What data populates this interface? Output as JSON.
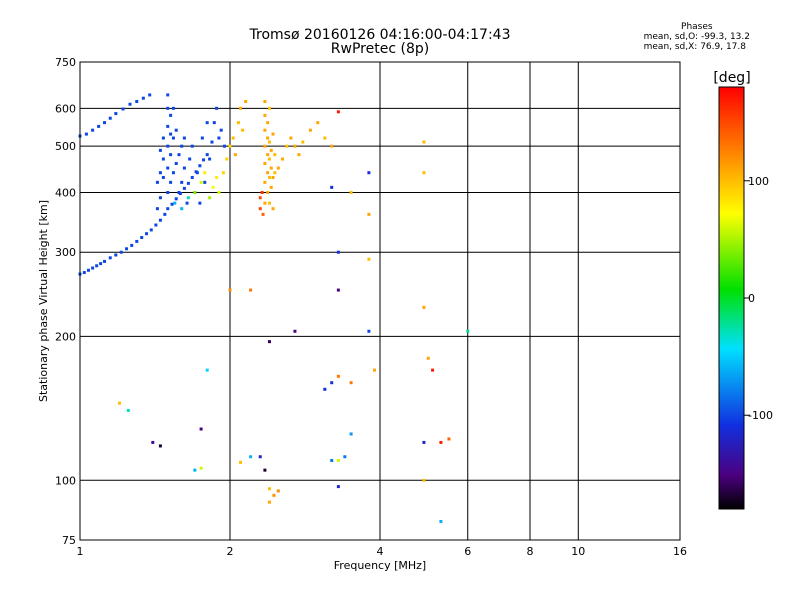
{
  "header": {
    "title": "Tromsø 20160126 04:16:00-04:17:43",
    "subtitle": "RwPretec (8p)"
  },
  "stats": {
    "heading": "Phases",
    "line_o": "mean, sd,O: -99.3, 13.2",
    "line_x": "mean, sd,X:  76.9, 17.8"
  },
  "colorbar": {
    "label": "[deg]",
    "ticks": [
      "100",
      "0",
      "-100"
    ],
    "tick_values": [
      100,
      0,
      -100
    ],
    "range": [
      -180,
      180
    ]
  },
  "chart_data": {
    "type": "scatter",
    "xlabel": "Frequency [MHz]",
    "ylabel": "Stationary phase Virtual Height [km]",
    "xscale": "log",
    "yscale": "log",
    "xlim": [
      1,
      16
    ],
    "ylim": [
      75,
      750
    ],
    "xticks": [
      1,
      2,
      4,
      6,
      8,
      10,
      16
    ],
    "xtick_labels": [
      "1",
      "2",
      "4",
      "6",
      "8",
      "10",
      "16"
    ],
    "yticks": [
      75,
      100,
      200,
      300,
      400,
      500,
      600,
      750
    ],
    "ytick_labels": [
      "75",
      "100",
      "200",
      "300",
      "400",
      "500",
      "600",
      "750"
    ],
    "grid": true,
    "series": [
      {
        "points": [
          [
            1.0,
            270,
            -100
          ],
          [
            1.02,
            272,
            -100
          ],
          [
            1.04,
            275,
            -100
          ],
          [
            1.06,
            278,
            -100
          ],
          [
            1.08,
            281,
            -100
          ],
          [
            1.1,
            284,
            -100
          ],
          [
            1.12,
            287,
            -100
          ],
          [
            1.15,
            292,
            -100
          ],
          [
            1.18,
            296,
            -100
          ],
          [
            1.21,
            300,
            -100
          ],
          [
            1.24,
            305,
            -100
          ],
          [
            1.27,
            310,
            -100
          ],
          [
            1.3,
            316,
            -100
          ],
          [
            1.33,
            322,
            -100
          ],
          [
            1.36,
            328,
            -100
          ],
          [
            1.39,
            334,
            -100
          ],
          [
            1.42,
            342,
            -100
          ],
          [
            1.45,
            350,
            -100
          ],
          [
            1.48,
            360,
            -100
          ],
          [
            1.5,
            370,
            -100
          ],
          [
            1.53,
            378,
            -100
          ],
          [
            1.56,
            388,
            -100
          ],
          [
            1.59,
            398,
            -100
          ],
          [
            1.62,
            408,
            -100
          ],
          [
            1.65,
            418,
            -100
          ],
          [
            1.68,
            430,
            -100
          ],
          [
            1.71,
            442,
            -100
          ],
          [
            1.74,
            455,
            -100
          ],
          [
            1.77,
            468,
            -100
          ],
          [
            1.8,
            480,
            -100
          ],
          [
            1.0,
            525,
            -100
          ],
          [
            1.03,
            530,
            -100
          ],
          [
            1.06,
            540,
            -100
          ],
          [
            1.09,
            550,
            -100
          ],
          [
            1.12,
            560,
            -100
          ],
          [
            1.15,
            572,
            -100
          ],
          [
            1.18,
            585,
            -100
          ],
          [
            1.22,
            598,
            -100
          ],
          [
            1.26,
            612,
            -100
          ],
          [
            1.3,
            620,
            -100
          ],
          [
            1.34,
            630,
            -100
          ],
          [
            1.38,
            640,
            -100
          ],
          [
            1.5,
            400,
            -100
          ],
          [
            1.5,
            450,
            -100
          ],
          [
            1.5,
            500,
            -100
          ],
          [
            1.5,
            550,
            -100
          ],
          [
            1.5,
            600,
            -100
          ],
          [
            1.5,
            640,
            -100
          ],
          [
            1.52,
            420,
            -100
          ],
          [
            1.52,
            480,
            -100
          ],
          [
            1.52,
            530,
            -100
          ],
          [
            1.52,
            580,
            -100
          ],
          [
            1.54,
            440,
            -100
          ],
          [
            1.54,
            520,
            -100
          ],
          [
            1.54,
            600,
            -100
          ],
          [
            1.47,
            430,
            -100
          ],
          [
            1.47,
            470,
            -100
          ],
          [
            1.47,
            520,
            -100
          ],
          [
            1.45,
            390,
            -100
          ],
          [
            1.45,
            440,
            -100
          ],
          [
            1.45,
            490,
            -100
          ],
          [
            1.43,
            370,
            -100
          ],
          [
            1.43,
            420,
            -100
          ],
          [
            1.56,
            460,
            -100
          ],
          [
            1.56,
            540,
            -100
          ],
          [
            1.58,
            400,
            -100
          ],
          [
            1.58,
            480,
            -100
          ],
          [
            1.6,
            420,
            -100
          ],
          [
            1.6,
            500,
            -100
          ],
          [
            1.62,
            450,
            -100
          ],
          [
            1.62,
            520,
            -100
          ],
          [
            1.64,
            380,
            -100
          ],
          [
            1.66,
            470,
            -100
          ],
          [
            1.68,
            500,
            -100
          ],
          [
            1.7,
            400,
            -100
          ],
          [
            1.72,
            440,
            -100
          ],
          [
            1.74,
            380,
            -100
          ],
          [
            1.76,
            520,
            -100
          ],
          [
            1.78,
            420,
            -100
          ],
          [
            1.8,
            560,
            -100
          ],
          [
            1.82,
            470,
            -100
          ],
          [
            1.84,
            510,
            -100
          ],
          [
            1.86,
            560,
            -100
          ],
          [
            1.88,
            600,
            -100
          ],
          [
            1.9,
            520,
            -100
          ],
          [
            1.92,
            540,
            -100
          ],
          [
            1.95,
            500,
            -100
          ],
          [
            1.55,
            380,
            -60
          ],
          [
            1.6,
            370,
            -60
          ],
          [
            1.65,
            390,
            -30
          ],
          [
            1.7,
            400,
            40
          ],
          [
            1.75,
            420,
            60
          ],
          [
            1.78,
            440,
            80
          ],
          [
            1.82,
            390,
            50
          ],
          [
            1.85,
            410,
            70
          ],
          [
            1.88,
            430,
            80
          ],
          [
            1.9,
            400,
            60
          ],
          [
            1.94,
            440,
            90
          ],
          [
            1.97,
            470,
            90
          ],
          [
            2.0,
            500,
            90
          ],
          [
            2.03,
            520,
            100
          ],
          [
            2.05,
            480,
            110
          ],
          [
            2.08,
            560,
            100
          ],
          [
            2.1,
            600,
            110
          ],
          [
            2.12,
            540,
            100
          ],
          [
            2.15,
            620,
            110
          ],
          [
            2.35,
            380,
            110
          ],
          [
            2.35,
            420,
            110
          ],
          [
            2.35,
            460,
            110
          ],
          [
            2.35,
            500,
            110
          ],
          [
            2.35,
            540,
            110
          ],
          [
            2.35,
            580,
            110
          ],
          [
            2.35,
            620,
            110
          ],
          [
            2.38,
            400,
            110
          ],
          [
            2.38,
            440,
            110
          ],
          [
            2.38,
            480,
            110
          ],
          [
            2.38,
            520,
            110
          ],
          [
            2.38,
            560,
            110
          ],
          [
            2.4,
            380,
            100
          ],
          [
            2.4,
            430,
            100
          ],
          [
            2.4,
            470,
            100
          ],
          [
            2.4,
            510,
            100
          ],
          [
            2.4,
            600,
            100
          ],
          [
            2.42,
            410,
            110
          ],
          [
            2.42,
            450,
            110
          ],
          [
            2.42,
            490,
            110
          ],
          [
            2.44,
            370,
            110
          ],
          [
            2.44,
            430,
            110
          ],
          [
            2.44,
            530,
            110
          ],
          [
            2.46,
            440,
            100
          ],
          [
            2.46,
            480,
            100
          ],
          [
            2.5,
            450,
            110
          ],
          [
            2.55,
            470,
            110
          ],
          [
            2.6,
            500,
            100
          ],
          [
            2.65,
            520,
            110
          ],
          [
            2.7,
            500,
            110
          ],
          [
            2.75,
            480,
            110
          ],
          [
            2.8,
            510,
            100
          ],
          [
            2.9,
            540,
            110
          ],
          [
            3.0,
            560,
            110
          ],
          [
            3.1,
            520,
            100
          ],
          [
            3.2,
            500,
            110
          ],
          [
            2.3,
            370,
            150
          ],
          [
            2.3,
            390,
            150
          ],
          [
            2.32,
            400,
            160
          ],
          [
            2.33,
            360,
            140
          ],
          [
            3.3,
            590,
            170
          ],
          [
            3.2,
            410,
            -110
          ],
          [
            3.8,
            440,
            -110
          ],
          [
            3.8,
            360,
            110
          ],
          [
            3.5,
            400,
            100
          ],
          [
            4.9,
            510,
            100
          ],
          [
            4.9,
            440,
            100
          ],
          [
            2.0,
            250,
            120
          ],
          [
            2.2,
            250,
            130
          ],
          [
            3.3,
            300,
            -110
          ],
          [
            3.3,
            250,
            -150
          ],
          [
            3.8,
            290,
            100
          ],
          [
            2.7,
            205,
            -150
          ],
          [
            2.4,
            195,
            -160
          ],
          [
            3.8,
            205,
            -100
          ],
          [
            4.9,
            230,
            110
          ],
          [
            6.0,
            205,
            -20
          ],
          [
            1.8,
            170,
            -50
          ],
          [
            3.2,
            160,
            -110
          ],
          [
            3.1,
            155,
            -110
          ],
          [
            3.3,
            165,
            130
          ],
          [
            3.5,
            160,
            130
          ],
          [
            3.9,
            170,
            110
          ],
          [
            5.0,
            180,
            110
          ],
          [
            5.1,
            170,
            170
          ],
          [
            1.2,
            145,
            100
          ],
          [
            1.25,
            140,
            -30
          ],
          [
            1.4,
            120,
            -140
          ],
          [
            1.45,
            118,
            -170
          ],
          [
            1.75,
            128,
            -150
          ],
          [
            2.2,
            112,
            -60
          ],
          [
            2.3,
            112,
            -120
          ],
          [
            2.35,
            105,
            -170
          ],
          [
            3.2,
            110,
            -80
          ],
          [
            3.3,
            110,
            60
          ],
          [
            3.4,
            112,
            -80
          ],
          [
            3.5,
            125,
            -70
          ],
          [
            4.9,
            120,
            -120
          ],
          [
            5.3,
            120,
            170
          ],
          [
            5.5,
            122,
            140
          ],
          [
            1.7,
            105,
            -60
          ],
          [
            1.75,
            106,
            60
          ],
          [
            2.1,
            109,
            100
          ],
          [
            4.9,
            100,
            100
          ],
          [
            3.3,
            97,
            -120
          ],
          [
            2.4,
            96,
            100
          ],
          [
            2.45,
            93,
            120
          ],
          [
            2.5,
            95,
            120
          ],
          [
            2.4,
            90,
            110
          ],
          [
            5.3,
            82,
            -60
          ]
        ]
      }
    ]
  }
}
